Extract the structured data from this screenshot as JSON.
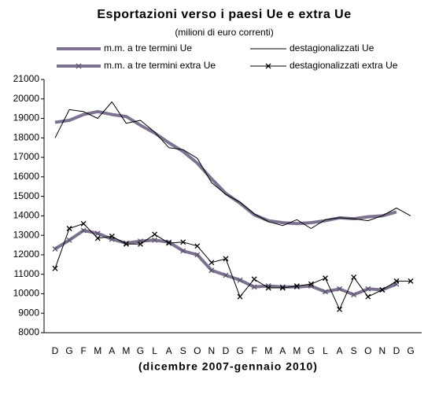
{
  "chart_data": {
    "type": "line",
    "title": "Esportazioni verso i paesi Ue e extra Ue",
    "subtitle": "(milioni di euro correnti)",
    "x_label": "(dicembre 2007-gennaio 2010)",
    "categories": [
      "D",
      "G",
      "F",
      "M",
      "A",
      "M",
      "G",
      "L",
      "A",
      "S",
      "O",
      "N",
      "D",
      "G",
      "F",
      "M",
      "A",
      "M",
      "G",
      "L",
      "A",
      "S",
      "O",
      "N",
      "D",
      "G"
    ],
    "ylim": [
      8000,
      21000
    ],
    "yticks": [
      8000,
      9000,
      10000,
      11000,
      12000,
      13000,
      14000,
      15000,
      16000,
      17000,
      18000,
      19000,
      20000,
      21000
    ],
    "grid": false,
    "series": [
      {
        "name": "m.m. a tre termini Ue",
        "color": "#7d7290",
        "line_width": 4,
        "marker": "none",
        "values": [
          18800,
          18900,
          19200,
          19350,
          19200,
          19100,
          18650,
          18250,
          17750,
          17300,
          16700,
          15900,
          15150,
          14650,
          14050,
          13750,
          13650,
          13600,
          13650,
          13750,
          13900,
          13850,
          13950,
          14000,
          14200,
          null
        ]
      },
      {
        "name": "destagionalizzati Ue",
        "color": "#000000",
        "line_width": 1,
        "marker": "none",
        "values": [
          18000,
          19450,
          19350,
          19000,
          19850,
          18750,
          18900,
          18300,
          17500,
          17400,
          16950,
          15700,
          15100,
          14700,
          14100,
          13700,
          13500,
          13800,
          13350,
          13800,
          13900,
          13850,
          13750,
          14000,
          14400,
          14000
        ]
      },
      {
        "name": "m.m. a tre termini extra Ue",
        "color": "#7d7290",
        "line_width": 4,
        "marker": "x",
        "values": [
          12300,
          12750,
          13250,
          13100,
          12800,
          12600,
          12700,
          12750,
          12650,
          12200,
          12000,
          11200,
          10950,
          10700,
          10350,
          10400,
          10350,
          10350,
          10400,
          10100,
          10250,
          9950,
          10250,
          10200,
          10500,
          null
        ]
      },
      {
        "name": "destagionalizzati extra Ue",
        "color": "#000000",
        "line_width": 1,
        "marker": "x",
        "values": [
          11300,
          13350,
          13600,
          12850,
          12950,
          12550,
          12550,
          13050,
          12600,
          12650,
          12450,
          11600,
          11800,
          9850,
          10750,
          10300,
          10300,
          10400,
          10500,
          10800,
          9200,
          10850,
          9850,
          10200,
          10650,
          10650
        ]
      }
    ]
  }
}
